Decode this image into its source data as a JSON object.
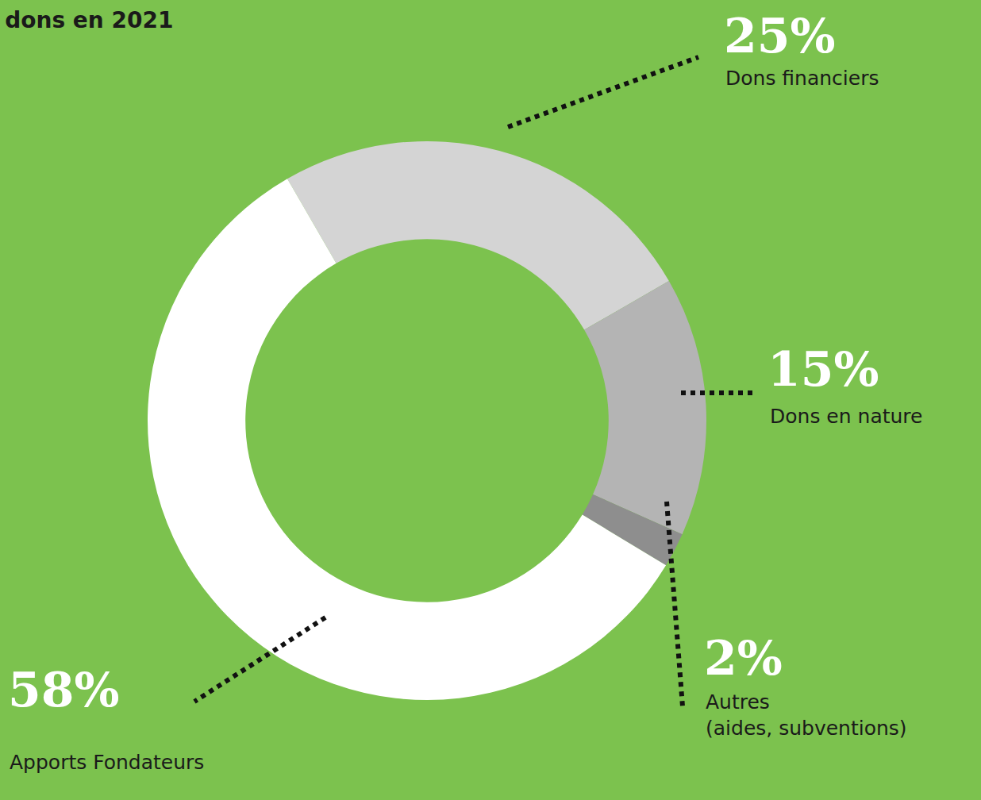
{
  "chart_data": {
    "type": "pie",
    "title": "dons en 2021",
    "categories": [
      "Dons financiers",
      "Dons en nature",
      "Autres (aides, subventions)",
      "Apports Fondateurs"
    ],
    "values": [
      25,
      15,
      2,
      58
    ],
    "value_labels": [
      "25%",
      "15%",
      "2%",
      "58%"
    ],
    "colors": [
      "#d4d4d4",
      "#b4b4b4",
      "#8e8e8e",
      "#ffffff"
    ],
    "data_labels": true
  }
}
